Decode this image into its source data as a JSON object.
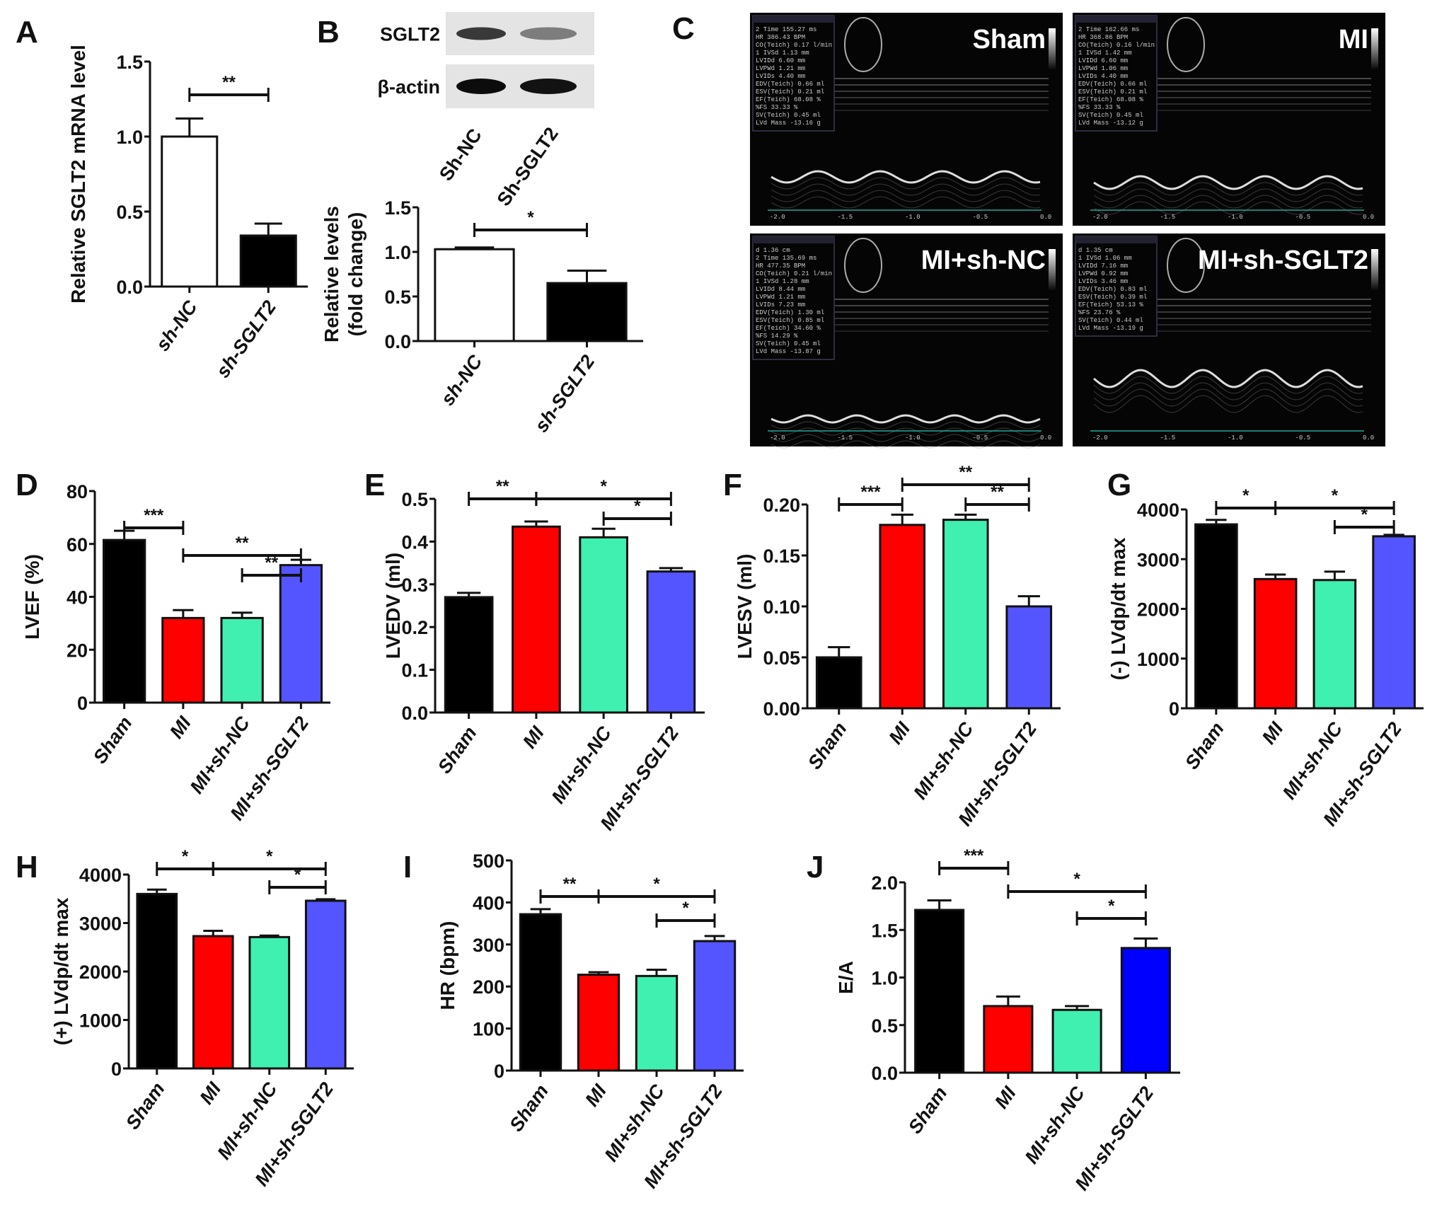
{
  "panel_letters": [
    "A",
    "B",
    "C",
    "D",
    "E",
    "F",
    "G",
    "H",
    "I",
    "J"
  ],
  "blot": {
    "bands": [
      "SGLT2",
      "β-actin"
    ],
    "lanes": [
      "Sh-NC",
      "Sh-SGLT2"
    ]
  },
  "echo": {
    "panels": [
      {
        "title": "Sham",
        "readout": [
          "2 Time 155.27 ms",
          "HR 386.43 BPM",
          "CO(Teich) 0.17 l/min",
          "1 IVSd 1.13 mm",
          "LVIDd 6.60 mm",
          "LVPWd 1.21 mm",
          "LVIDs 4.40 mm",
          "EDV(Teich) 0.66 ml",
          "ESV(Teich) 0.21 ml",
          "EF(Teich) 68.08 %",
          "%FS 33.33 %",
          "SV(Teich) 0.45 ml",
          "LVd Mass -13.16 g"
        ]
      },
      {
        "title": "MI",
        "readout": [
          "2 Time 162.66 ms",
          "HR 368.86 BPM",
          "CO(Teich) 0.16 l/min",
          "1 IVSd 1.42 mm",
          "LVIDd 6.60 mm",
          "LVPWd 1.06 mm",
          "LVIDs 4.40 mm",
          "EDV(Teich) 0.66 ml",
          "ESV(Teich) 0.21 ml",
          "EF(Teich) 68.08 %",
          "%FS 33.33 %",
          "SV(Teich) 0.45 ml",
          "LVd Mass -13.12 g"
        ]
      },
      {
        "title": "MI+sh-NC",
        "readout": [
          "d 1.36 cm",
          "2 Time 135.69 ms",
          "HR 477.35 BPM",
          "CO(Teich) 0.21 l/min",
          "1 IVSd 1.28 mm",
          "LVIDd 8.44 mm",
          "LVPWd 1.21 mm",
          "LVIDs 7.23 mm",
          "EDV(Teich) 1.30 ml",
          "ESV(Teich) 0.85 ml",
          "EF(Teich) 34.60 %",
          "%FS 14.29 %",
          "SV(Teich) 0.45 ml",
          "LVd Mass -13.87 g"
        ]
      },
      {
        "title": "MI+sh-SGLT2",
        "readout": [
          "d 1.35 cm",
          "1 IVSd 1.06 mm",
          "LVIDd 7.16 mm",
          "LVPWd 0.92 mm",
          "LVIDs 3.46 mm",
          "EDV(Teich) 0.83 ml",
          "ESV(Teich) 0.39 ml",
          "EF(Teich) 53.13 %",
          "%FS 23.76 %",
          "SV(Teich) 0.44 ml",
          "LVd Mass -13.19 g"
        ]
      }
    ],
    "axis_ticks": [
      "-2.0",
      "-1.5",
      "-1.0",
      "-0.5",
      "0.0"
    ]
  },
  "colors": {
    "sham": "#000000",
    "mi": "#ff0000",
    "mi_sh_nc": "#3ff0b0",
    "mi_sh_sglt2": "#5555ff",
    "mi_sh_sglt2_J": "#0000ff",
    "sh_nc": "#ffffff",
    "sh_sglt2": "#000000"
  },
  "chart_data": [
    {
      "panel": "A",
      "type": "bar",
      "categories": [
        "sh-NC",
        "sh-SGLT2"
      ],
      "values": [
        1.0,
        0.34
      ],
      "errors": [
        0.12,
        0.08
      ],
      "ylabel": [
        "Relative SGLT2 mRNA level"
      ],
      "ylim": [
        0,
        1.5
      ],
      "yticks": [
        "0.0",
        "0.5",
        "1.0",
        "1.5"
      ],
      "colors": [
        "#ffffff",
        "#000000"
      ],
      "significance": [
        {
          "groups": [
            0,
            1
          ],
          "label": "**"
        }
      ]
    },
    {
      "panel": "B",
      "type": "bar",
      "categories": [
        "sh-NC",
        "sh-SGLT2"
      ],
      "values": [
        1.03,
        0.65
      ],
      "errors": [
        0.02,
        0.14
      ],
      "ylabel": [
        "Relative levels",
        "(fold change)"
      ],
      "ylim": [
        0,
        1.5
      ],
      "yticks": [
        "0.0",
        "0.5",
        "1.0",
        "1.5"
      ],
      "colors": [
        "#ffffff",
        "#000000"
      ],
      "significance": [
        {
          "groups": [
            0,
            1
          ],
          "label": "*"
        }
      ]
    },
    {
      "panel": "D",
      "type": "bar",
      "categories": [
        "Sham",
        "MI",
        "MI+sh-NC",
        "MI+sh-SGLT2"
      ],
      "values": [
        61.5,
        32,
        32,
        52
      ],
      "errors": [
        3.5,
        3,
        2,
        2
      ],
      "ylabel": [
        "LVEF (%)"
      ],
      "ylim": [
        0,
        80
      ],
      "yticks": [
        "0",
        "20",
        "40",
        "60",
        "80"
      ],
      "colors": [
        "#000000",
        "#ff0000",
        "#3ff0b0",
        "#5555ff"
      ],
      "significance": [
        {
          "groups": [
            0,
            1
          ],
          "label": "***"
        },
        {
          "groups": [
            1,
            3
          ],
          "label": "**"
        },
        {
          "groups": [
            2,
            3
          ],
          "label": "**"
        }
      ]
    },
    {
      "panel": "E",
      "type": "bar",
      "categories": [
        "Sham",
        "MI",
        "MI+sh-NC",
        "MI+sh-SGLT2"
      ],
      "values": [
        0.27,
        0.435,
        0.41,
        0.33
      ],
      "errors": [
        0.01,
        0.012,
        0.02,
        0.008
      ],
      "ylabel": [
        "LVEDV (ml)"
      ],
      "ylim": [
        0,
        0.5
      ],
      "yticks": [
        "0.0",
        "0.1",
        "0.2",
        "0.3",
        "0.4",
        "0.5"
      ],
      "colors": [
        "#000000",
        "#ff0000",
        "#3ff0b0",
        "#5555ff"
      ],
      "significance": [
        {
          "groups": [
            0,
            1
          ],
          "label": "**"
        },
        {
          "groups": [
            1,
            3
          ],
          "label": "*"
        },
        {
          "groups": [
            2,
            3
          ],
          "label": "*"
        }
      ]
    },
    {
      "panel": "F",
      "type": "bar",
      "categories": [
        "Sham",
        "MI",
        "MI+sh-NC",
        "MI+sh-SGLT2"
      ],
      "values": [
        0.05,
        0.18,
        0.185,
        0.1
      ],
      "errors": [
        0.01,
        0.01,
        0.005,
        0.01
      ],
      "ylabel": [
        "LVESV (ml)"
      ],
      "ylim": [
        0,
        0.2
      ],
      "yticks": [
        "0.00",
        "0.05",
        "0.10",
        "0.15",
        "0.20"
      ],
      "colors": [
        "#000000",
        "#ff0000",
        "#3ff0b0",
        "#5555ff"
      ],
      "significance": [
        {
          "groups": [
            0,
            1
          ],
          "label": "***"
        },
        {
          "groups": [
            1,
            3
          ],
          "label": "**"
        },
        {
          "groups": [
            2,
            3
          ],
          "label": "**"
        }
      ]
    },
    {
      "panel": "G",
      "type": "bar",
      "categories": [
        "Sham",
        "MI",
        "MI+sh-NC",
        "MI+sh-SGLT2"
      ],
      "values": [
        3700,
        2600,
        2580,
        3460
      ],
      "errors": [
        90,
        90,
        170,
        30
      ],
      "ylabel": [
        "(-) LVdp/dt max"
      ],
      "ylim": [
        0,
        4000
      ],
      "yticks": [
        "0",
        "1000",
        "2000",
        "3000",
        "4000"
      ],
      "colors": [
        "#000000",
        "#ff0000",
        "#3ff0b0",
        "#5555ff"
      ],
      "significance": [
        {
          "groups": [
            0,
            1
          ],
          "label": "*"
        },
        {
          "groups": [
            1,
            3
          ],
          "label": "*"
        },
        {
          "groups": [
            2,
            3
          ],
          "label": "*"
        }
      ]
    },
    {
      "panel": "H",
      "type": "bar",
      "categories": [
        "Sham",
        "MI",
        "MI+sh-NC",
        "MI+sh-SGLT2"
      ],
      "values": [
        3600,
        2730,
        2710,
        3460
      ],
      "errors": [
        90,
        110,
        30,
        30
      ],
      "ylabel": [
        "(+) LVdp/dt max"
      ],
      "ylim": [
        0,
        4000
      ],
      "yticks": [
        "0",
        "1000",
        "2000",
        "3000",
        "4000"
      ],
      "colors": [
        "#000000",
        "#ff0000",
        "#3ff0b0",
        "#5555ff"
      ],
      "significance": [
        {
          "groups": [
            0,
            1
          ],
          "label": "*"
        },
        {
          "groups": [
            1,
            3
          ],
          "label": "*"
        },
        {
          "groups": [
            2,
            3
          ],
          "label": "*"
        }
      ]
    },
    {
      "panel": "I",
      "type": "bar",
      "categories": [
        "Sham",
        "MI",
        "MI+sh-NC",
        "MI+sh-SGLT2"
      ],
      "values": [
        372,
        228,
        225,
        308
      ],
      "errors": [
        12,
        6,
        15,
        12
      ],
      "ylabel": [
        "HR (bpm)"
      ],
      "ylim": [
        0,
        500
      ],
      "yticks": [
        "0",
        "100",
        "200",
        "300",
        "400",
        "500"
      ],
      "colors": [
        "#000000",
        "#ff0000",
        "#3ff0b0",
        "#5555ff"
      ],
      "significance": [
        {
          "groups": [
            0,
            1
          ],
          "label": "**"
        },
        {
          "groups": [
            1,
            3
          ],
          "label": "*"
        },
        {
          "groups": [
            2,
            3
          ],
          "label": "*"
        }
      ]
    },
    {
      "panel": "J",
      "type": "bar",
      "categories": [
        "Sham",
        "MI",
        "MI+sh-NC",
        "MI+sh-SGLT2"
      ],
      "values": [
        1.71,
        0.7,
        0.66,
        1.31
      ],
      "errors": [
        0.1,
        0.1,
        0.04,
        0.1
      ],
      "ylabel": [
        "E/A"
      ],
      "ylim": [
        0,
        2.0
      ],
      "yticks": [
        "0.0",
        "0.5",
        "1.0",
        "1.5",
        "2.0"
      ],
      "colors": [
        "#000000",
        "#ff0000",
        "#3ff0b0",
        "#0000ff"
      ],
      "significance": [
        {
          "groups": [
            0,
            1
          ],
          "label": "***"
        },
        {
          "groups": [
            1,
            3
          ],
          "label": "*"
        },
        {
          "groups": [
            2,
            3
          ],
          "label": "*"
        }
      ]
    }
  ]
}
